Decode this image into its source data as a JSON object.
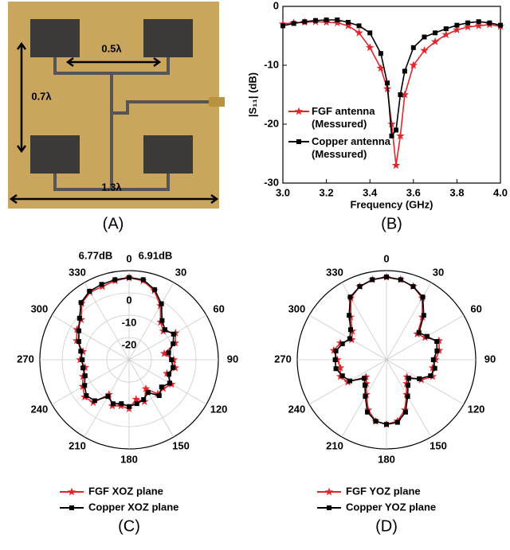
{
  "photo": {
    "labels": [
      "0.5λ",
      "0.7λ",
      "1.3λ"
    ],
    "caption": "(A)"
  },
  "chart_data": [
    {
      "type": "line",
      "caption": "(B)",
      "xlabel": "Frequency (GHz)",
      "ylabel": "|S₁₁| (dB)",
      "x": [
        3.0,
        3.05,
        3.1,
        3.15,
        3.2,
        3.25,
        3.3,
        3.35,
        3.4,
        3.45,
        3.48,
        3.5,
        3.52,
        3.54,
        3.56,
        3.6,
        3.65,
        3.7,
        3.75,
        3.8,
        3.85,
        3.9,
        3.95,
        4.0
      ],
      "xlim": [
        3.0,
        4.0
      ],
      "ylim": [
        -30,
        0
      ],
      "xticks": [
        {
          "value": 3.0,
          "label": "3.0"
        },
        3.2,
        3.4,
        3.6,
        3.8,
        {
          "value": 4.0,
          "label": "4.0"
        }
      ],
      "yticks": [
        0,
        -10,
        -20,
        -30
      ],
      "series": [
        {
          "name": "FGF antenna (Messured)",
          "color": "#e0262b",
          "marker": "star",
          "values": [
            -3,
            -2.8,
            -2.7,
            -2.6,
            -2.7,
            -2.8,
            -3.3,
            -4.5,
            -7,
            -10.5,
            -14,
            -20,
            -27,
            -22,
            -15,
            -10,
            -7.5,
            -6,
            -4.8,
            -4,
            -3.5,
            -3.3,
            -3.1,
            -3.4
          ]
        },
        {
          "name": "Copper antenna (Messured)",
          "color": "#000000",
          "marker": "square",
          "values": [
            -3.3,
            -2.9,
            -2.6,
            -2.4,
            -2.3,
            -2.3,
            -2.7,
            -3.3,
            -4.5,
            -8,
            -13,
            -22,
            -21,
            -15,
            -11,
            -7,
            -5.2,
            -4.5,
            -3.8,
            -3.2,
            -2.8,
            -2.6,
            -2.8,
            -3.2
          ]
        }
      ]
    },
    {
      "type": "polar",
      "caption": "(C)",
      "theta": [
        0,
        10,
        20,
        30,
        40,
        50,
        60,
        70,
        80,
        90,
        100,
        110,
        120,
        130,
        140,
        150,
        160,
        170,
        180,
        190,
        200,
        210,
        220,
        230,
        240,
        250,
        260,
        270,
        280,
        290,
        300,
        310,
        320,
        330,
        340,
        350
      ],
      "rlim": [
        -30,
        10
      ],
      "rticks": [
        0,
        -10,
        -20
      ],
      "thetaticks": [
        0,
        30,
        60,
        90,
        120,
        150,
        180,
        210,
        240,
        270,
        300,
        330
      ],
      "annotations": [
        {
          "text": "6.77dB",
          "color": "#e0262b"
        },
        {
          "text": "6.91dB",
          "color": "#000000"
        }
      ],
      "series": [
        {
          "name": "FGF XOZ plane",
          "color": "#e0262b",
          "marker": "star",
          "values": [
            6.77,
            6,
            3,
            -2,
            -8,
            -10,
            -6,
            -8,
            -14,
            -10,
            -9,
            -12,
            -8,
            -10,
            -10,
            -15,
            -10,
            -12,
            -8,
            -9,
            -8,
            -12,
            -5,
            -4,
            -6,
            -8,
            -10,
            -8,
            -9,
            -5,
            -3,
            -2,
            3,
            5,
            5,
            6
          ]
        },
        {
          "name": "Copper XOZ plane",
          "color": "#000000",
          "marker": "square",
          "values": [
            6.91,
            6.5,
            3.5,
            -1,
            -7,
            -9,
            -7,
            -9,
            -12,
            -11,
            -10,
            -11,
            -9,
            -11,
            -9,
            -13,
            -11,
            -10,
            -9,
            -10,
            -9,
            -11,
            -6,
            -5,
            -7,
            -9,
            -9,
            -9,
            -8,
            -6,
            -4,
            -1,
            3.5,
            5.5,
            6,
            6.5
          ]
        }
      ]
    },
    {
      "type": "polar",
      "caption": "(D)",
      "theta": [
        0,
        10,
        20,
        30,
        40,
        50,
        60,
        70,
        80,
        90,
        100,
        110,
        120,
        130,
        140,
        150,
        160,
        170,
        180,
        190,
        200,
        210,
        220,
        230,
        240,
        250,
        260,
        270,
        280,
        290,
        300,
        310,
        320,
        330,
        340,
        350
      ],
      "rlim": [
        -30,
        10
      ],
      "thetaticks": [
        0,
        30,
        60,
        90,
        120,
        150,
        180,
        210,
        240,
        270,
        300,
        330
      ],
      "series": [
        {
          "name": "FGF YOZ plane",
          "color": "#e0262b",
          "marker": "star",
          "values": [
            7,
            6.5,
            5,
            2,
            -5,
            -12,
            -10,
            -5,
            -6,
            -8,
            -9,
            -8,
            -12,
            -18,
            -16,
            -12,
            -6,
            -2,
            -1,
            -2,
            -6,
            -12,
            -16,
            -18,
            -10,
            -8,
            -9,
            -8,
            -6,
            -8,
            -12,
            -10,
            -5,
            2,
            5,
            6.5
          ]
        },
        {
          "name": "Copper YOZ plane",
          "color": "#000000",
          "marker": "square",
          "values": [
            7.2,
            6.5,
            5,
            2.5,
            -4,
            -11,
            -9,
            -6,
            -7,
            -9,
            -8,
            -9,
            -13,
            -17,
            -15,
            -11,
            -5,
            -1.5,
            -1,
            -2,
            -5,
            -11,
            -15,
            -17,
            -11,
            -9,
            -7,
            -7,
            -7,
            -9,
            -11,
            -9,
            -4,
            2.5,
            5,
            6.5
          ]
        }
      ]
    }
  ]
}
